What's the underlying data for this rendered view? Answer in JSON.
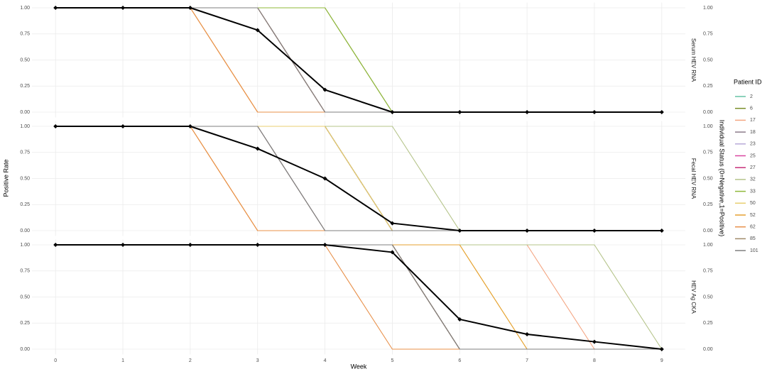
{
  "chart_data": [
    {
      "type": "line",
      "facet": "Serum HEV RNA",
      "x": [
        0,
        1,
        2,
        3,
        4,
        5,
        6,
        7,
        8,
        9
      ],
      "xlim": [
        -0.35,
        9.35
      ],
      "xticks": [
        0,
        1,
        2,
        3,
        4,
        5,
        6,
        7,
        8,
        9
      ],
      "ylim": [
        -0.05,
        1.05
      ],
      "yticks": [
        {
          "value": 0,
          "label": "0.00"
        },
        {
          "value": 0.25,
          "label": "0.25"
        },
        {
          "value": 0.5,
          "label": "0.50"
        },
        {
          "value": 0.75,
          "label": "0.75"
        },
        {
          "value": 1,
          "label": "1.00"
        }
      ],
      "y2lim": [
        -0.05,
        1.05
      ],
      "y2ticks": [
        {
          "value": 0,
          "label": "0.00"
        },
        {
          "value": 0.25,
          "label": "0.25"
        },
        {
          "value": 0.5,
          "label": "0.50"
        },
        {
          "value": 0.75,
          "label": "0.75"
        },
        {
          "value": 1,
          "label": "1.00"
        }
      ],
      "grid": true,
      "rate": {
        "color": "#000000",
        "values": [
          1,
          1,
          1,
          0.786,
          0.214,
          0,
          0,
          0,
          0,
          0
        ]
      },
      "series": [
        {
          "name": "2",
          "color": "#66c2a5",
          "axis": "y2",
          "values": [
            1,
            1,
            1,
            1,
            0,
            0,
            0,
            0,
            0,
            0
          ]
        },
        {
          "name": "6",
          "color": "#7a8f2a",
          "axis": "y2",
          "values": [
            1,
            1,
            1,
            1,
            1,
            0,
            0,
            0,
            0,
            0
          ]
        },
        {
          "name": "17",
          "color": "#f4a582",
          "axis": "y2",
          "values": [
            1,
            1,
            1,
            0,
            0,
            0,
            0,
            0,
            0,
            0
          ]
        },
        {
          "name": "18",
          "color": "#8c7b8a",
          "axis": "y2",
          "values": [
            1,
            1,
            1,
            1,
            0,
            0,
            0,
            0,
            0,
            0
          ]
        },
        {
          "name": "23",
          "color": "#b8a9d9",
          "axis": "y2",
          "values": [
            1,
            1,
            1,
            1,
            0,
            0,
            0,
            0,
            0,
            0
          ]
        },
        {
          "name": "25",
          "color": "#d946a0",
          "axis": "y2",
          "values": [
            1,
            1,
            1,
            1,
            0,
            0,
            0,
            0,
            0,
            0
          ]
        },
        {
          "name": "27",
          "color": "#c7307a",
          "axis": "y2",
          "values": [
            1,
            1,
            1,
            1,
            0,
            0,
            0,
            0,
            0,
            0
          ]
        },
        {
          "name": "32",
          "color": "#b5c48a",
          "axis": "y2",
          "values": [
            1,
            1,
            1,
            1,
            1,
            0,
            0,
            0,
            0,
            0
          ]
        },
        {
          "name": "33",
          "color": "#8fb83a",
          "axis": "y2",
          "values": [
            1,
            1,
            1,
            1,
            1,
            0,
            0,
            0,
            0,
            0
          ]
        },
        {
          "name": "50",
          "color": "#e8cf70",
          "axis": "y2",
          "values": [
            1,
            1,
            1,
            1,
            0,
            0,
            0,
            0,
            0,
            0
          ]
        },
        {
          "name": "52",
          "color": "#e6a030",
          "axis": "y2",
          "values": [
            1,
            1,
            1,
            0,
            0,
            0,
            0,
            0,
            0,
            0
          ]
        },
        {
          "name": "62",
          "color": "#e8904a",
          "axis": "y2",
          "values": [
            1,
            1,
            1,
            0,
            0,
            0,
            0,
            0,
            0,
            0
          ]
        },
        {
          "name": "85",
          "color": "#a08a6a",
          "axis": "y2",
          "values": [
            1,
            1,
            1,
            1,
            0,
            0,
            0,
            0,
            0,
            0
          ]
        },
        {
          "name": "101",
          "color": "#7f7f7f",
          "axis": "y2",
          "values": [
            1,
            1,
            1,
            1,
            0,
            0,
            0,
            0,
            0,
            0
          ]
        }
      ]
    },
    {
      "type": "line",
      "facet": "Fecal HEV RNA",
      "x": [
        0,
        1,
        2,
        3,
        4,
        5,
        6,
        7,
        8,
        9
      ],
      "xlim": [
        -0.35,
        9.35
      ],
      "xticks": [
        0,
        1,
        2,
        3,
        4,
        5,
        6,
        7,
        8,
        9
      ],
      "ylim": [
        -0.05,
        1.05
      ],
      "yticks": [
        {
          "value": 0,
          "label": "0.00"
        },
        {
          "value": 0.25,
          "label": "0.25"
        },
        {
          "value": 0.5,
          "label": "0.50"
        },
        {
          "value": 0.75,
          "label": "0.75"
        },
        {
          "value": 1,
          "label": "1.00"
        }
      ],
      "y2lim": [
        -0.05,
        1.05
      ],
      "y2ticks": [
        {
          "value": 0,
          "label": "0.00"
        },
        {
          "value": 0.25,
          "label": "0.25"
        },
        {
          "value": 0.5,
          "label": "0.50"
        },
        {
          "value": 0.75,
          "label": "0.75"
        },
        {
          "value": 1,
          "label": "1.00"
        }
      ],
      "grid": true,
      "rate": {
        "color": "#000000",
        "values": [
          1,
          1,
          1,
          0.786,
          0.5,
          0.071,
          0,
          0,
          0,
          0
        ]
      },
      "series": [
        {
          "name": "2",
          "color": "#66c2a5",
          "axis": "y2",
          "values": [
            1,
            1,
            1,
            1,
            1,
            0,
            0,
            0,
            0,
            0
          ]
        },
        {
          "name": "6",
          "color": "#7a8f2a",
          "axis": "y2",
          "values": [
            1,
            1,
            1,
            1,
            1,
            0,
            0,
            0,
            0,
            0
          ]
        },
        {
          "name": "17",
          "color": "#f4a582",
          "axis": "y2",
          "values": [
            1,
            1,
            1,
            0,
            0,
            0,
            0,
            0,
            0,
            0
          ]
        },
        {
          "name": "18",
          "color": "#8c7b8a",
          "axis": "y2",
          "values": [
            1,
            1,
            1,
            1,
            0,
            0,
            0,
            0,
            0,
            0
          ]
        },
        {
          "name": "23",
          "color": "#b8a9d9",
          "axis": "y2",
          "values": [
            1,
            1,
            1,
            1,
            0,
            0,
            0,
            0,
            0,
            0
          ]
        },
        {
          "name": "25",
          "color": "#d946a0",
          "axis": "y2",
          "values": [
            1,
            1,
            1,
            1,
            1,
            0,
            0,
            0,
            0,
            0
          ]
        },
        {
          "name": "27",
          "color": "#c7307a",
          "axis": "y2",
          "values": [
            1,
            1,
            1,
            1,
            1,
            0,
            0,
            0,
            0,
            0
          ]
        },
        {
          "name": "32",
          "color": "#b5c48a",
          "axis": "y2",
          "values": [
            1,
            1,
            1,
            1,
            1,
            1,
            0,
            0,
            0,
            0
          ]
        },
        {
          "name": "33",
          "color": "#8fb83a",
          "axis": "y2",
          "values": [
            1,
            1,
            1,
            1,
            1,
            0,
            0,
            0,
            0,
            0
          ]
        },
        {
          "name": "50",
          "color": "#e8cf70",
          "axis": "y2",
          "values": [
            1,
            1,
            1,
            1,
            1,
            0,
            0,
            0,
            0,
            0
          ]
        },
        {
          "name": "52",
          "color": "#e6a030",
          "axis": "y2",
          "values": [
            1,
            1,
            1,
            0,
            0,
            0,
            0,
            0,
            0,
            0
          ]
        },
        {
          "name": "62",
          "color": "#e8904a",
          "axis": "y2",
          "values": [
            1,
            1,
            1,
            0,
            0,
            0,
            0,
            0,
            0,
            0
          ]
        },
        {
          "name": "85",
          "color": "#a08a6a",
          "axis": "y2",
          "values": [
            1,
            1,
            1,
            1,
            0,
            0,
            0,
            0,
            0,
            0
          ]
        },
        {
          "name": "101",
          "color": "#7f7f7f",
          "axis": "y2",
          "values": [
            1,
            1,
            1,
            1,
            0,
            0,
            0,
            0,
            0,
            0
          ]
        }
      ]
    },
    {
      "type": "line",
      "facet": "HEV Ag CKA",
      "x": [
        0,
        1,
        2,
        3,
        4,
        5,
        6,
        7,
        8,
        9
      ],
      "xlim": [
        -0.35,
        9.35
      ],
      "xticks": [
        0,
        1,
        2,
        3,
        4,
        5,
        6,
        7,
        8,
        9
      ],
      "ylim": [
        -0.05,
        1.05
      ],
      "yticks": [
        {
          "value": 0,
          "label": "0.00"
        },
        {
          "value": 0.25,
          "label": "0.25"
        },
        {
          "value": 0.5,
          "label": "0.50"
        },
        {
          "value": 0.75,
          "label": "0.75"
        },
        {
          "value": 1,
          "label": "1.00"
        }
      ],
      "y2lim": [
        -0.05,
        1.05
      ],
      "y2ticks": [
        {
          "value": 0,
          "label": "0.00"
        },
        {
          "value": 0.25,
          "label": "0.25"
        },
        {
          "value": 0.5,
          "label": "0.50"
        },
        {
          "value": 0.75,
          "label": "0.75"
        },
        {
          "value": 1,
          "label": "1.00"
        }
      ],
      "grid": true,
      "rate": {
        "color": "#000000",
        "values": [
          1,
          1,
          1,
          1,
          1,
          0.929,
          0.286,
          0.143,
          0.071,
          0
        ]
      },
      "series": [
        {
          "name": "2",
          "color": "#66c2a5",
          "axis": "y2",
          "values": [
            1,
            1,
            1,
            1,
            1,
            1,
            0,
            0,
            0,
            0
          ]
        },
        {
          "name": "6",
          "color": "#7a8f2a",
          "axis": "y2",
          "values": [
            1,
            1,
            1,
            1,
            1,
            1,
            0,
            0,
            0,
            0
          ]
        },
        {
          "name": "17",
          "color": "#f4a582",
          "axis": "y2",
          "values": [
            1,
            1,
            1,
            1,
            1,
            1,
            1,
            1,
            0,
            0
          ]
        },
        {
          "name": "18",
          "color": "#8c7b8a",
          "axis": "y2",
          "values": [
            1,
            1,
            1,
            1,
            1,
            1,
            0,
            0,
            0,
            0
          ]
        },
        {
          "name": "23",
          "color": "#b8a9d9",
          "axis": "y2",
          "values": [
            1,
            1,
            1,
            1,
            1,
            1,
            0,
            0,
            0,
            0
          ]
        },
        {
          "name": "25",
          "color": "#d946a0",
          "axis": "y2",
          "values": [
            1,
            1,
            1,
            1,
            1,
            1,
            0,
            0,
            0,
            0
          ]
        },
        {
          "name": "27",
          "color": "#c7307a",
          "axis": "y2",
          "values": [
            1,
            1,
            1,
            1,
            1,
            1,
            0,
            0,
            0,
            0
          ]
        },
        {
          "name": "32",
          "color": "#b5c48a",
          "axis": "y2",
          "values": [
            1,
            1,
            1,
            1,
            1,
            1,
            1,
            1,
            1,
            0
          ]
        },
        {
          "name": "33",
          "color": "#8fb83a",
          "axis": "y2",
          "values": [
            1,
            1,
            1,
            1,
            1,
            1,
            0,
            0,
            0,
            0
          ]
        },
        {
          "name": "50",
          "color": "#e8cf70",
          "axis": "y2",
          "values": [
            1,
            1,
            1,
            1,
            1,
            1,
            1,
            0,
            0,
            0
          ]
        },
        {
          "name": "52",
          "color": "#e6a030",
          "axis": "y2",
          "values": [
            1,
            1,
            1,
            1,
            1,
            1,
            1,
            0,
            0,
            0
          ]
        },
        {
          "name": "62",
          "color": "#e8904a",
          "axis": "y2",
          "values": [
            1,
            1,
            1,
            1,
            1,
            0,
            0,
            0,
            0,
            0
          ]
        },
        {
          "name": "85",
          "color": "#a08a6a",
          "axis": "y2",
          "values": [
            1,
            1,
            1,
            1,
            1,
            1,
            0,
            0,
            0,
            0
          ]
        },
        {
          "name": "101",
          "color": "#7f7f7f",
          "axis": "y2",
          "values": [
            1,
            1,
            1,
            1,
            1,
            1,
            0,
            0,
            0,
            0
          ]
        }
      ]
    }
  ],
  "shared": {
    "x_label": "Week",
    "y_label": "Positive Rate",
    "y2_label": "Individual Status (0=Negative,1=Positive)",
    "legend_title": "Patient ID"
  }
}
